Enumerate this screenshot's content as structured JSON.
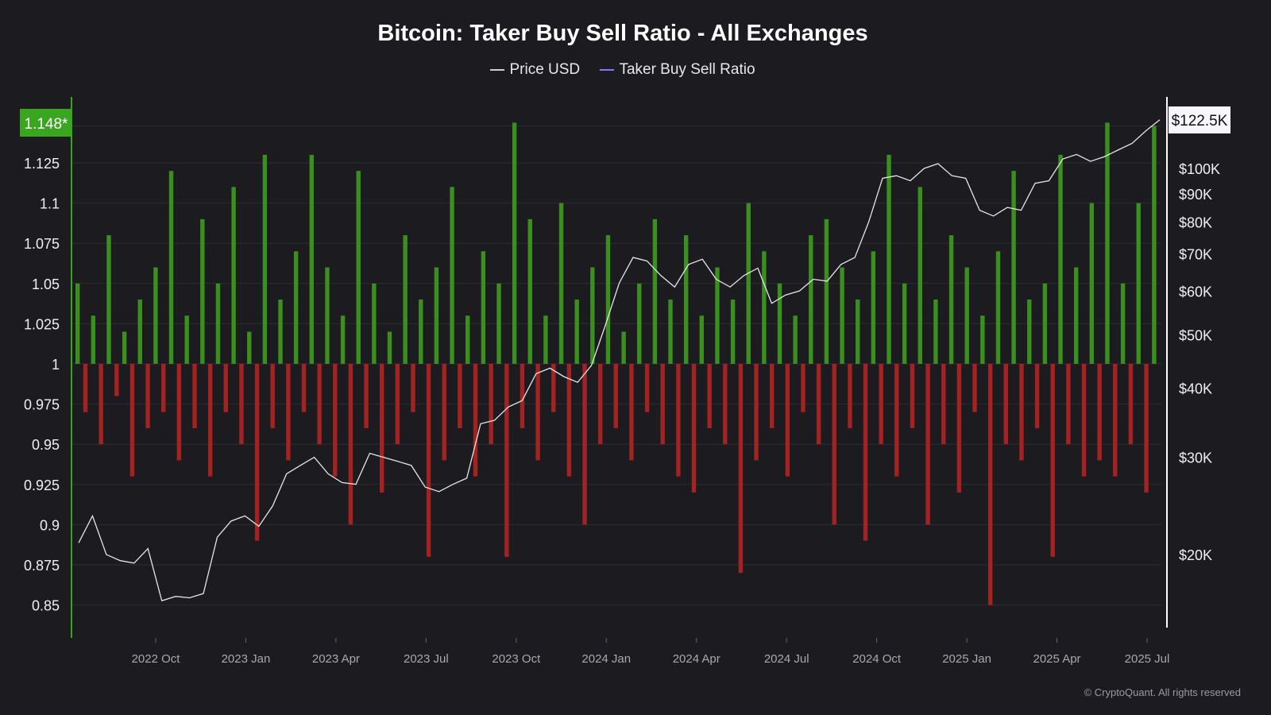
{
  "chart_data": {
    "type": "bar+line",
    "title": "Bitcoin: Taker Buy Sell Ratio - All Exchanges",
    "legend": [
      {
        "name": "Price USD",
        "color": "#cfcfcf"
      },
      {
        "name": "Taker Buy Sell Ratio",
        "color": "#7b7bff"
      }
    ],
    "legend_placement": "top-center",
    "left_axis": {
      "ticks": [
        "1.125",
        "1.1",
        "1.075",
        "1.05",
        "1.025",
        "1",
        "0.975",
        "0.95",
        "0.925",
        "0.9",
        "0.875",
        "0.85"
      ],
      "range": [
        0.83,
        1.163
      ],
      "current_label": "1.148*"
    },
    "right_axis": {
      "scale": "log",
      "ticks": [
        [
          "$100K",
          100000
        ],
        [
          "$90K",
          90000
        ],
        [
          "$80K",
          80000
        ],
        [
          "$70K",
          70000
        ],
        [
          "$60K",
          60000
        ],
        [
          "$50K",
          50000
        ],
        [
          "$40K",
          40000
        ],
        [
          "$30K",
          30000
        ],
        [
          "$20K",
          20000
        ]
      ],
      "current_label": "$122.5K"
    },
    "x_ticks": [
      "2022 Oct",
      "2023 Jan",
      "2023 Apr",
      "2023 Jul",
      "2023 Oct",
      "2024 Jan",
      "2024 Apr",
      "2024 Jul",
      "2024 Oct",
      "2025 Jan",
      "2025 Apr",
      "2025 Jul"
    ],
    "colors": {
      "up": "#3a8f1f",
      "down": "#a32222",
      "price": "#e6e6e6",
      "badge": "#3aa61f"
    },
    "price_series": [
      21000,
      23500,
      20000,
      19500,
      19300,
      20500,
      16500,
      16800,
      16700,
      17000,
      21500,
      23000,
      23500,
      22500,
      24500,
      28000,
      29000,
      30000,
      28000,
      27000,
      26800,
      30500,
      30000,
      29500,
      29000,
      26500,
      26000,
      26800,
      27500,
      34500,
      35000,
      37000,
      38000,
      42500,
      43500,
      42000,
      41000,
      44000,
      52000,
      62000,
      69000,
      68000,
      64000,
      61000,
      67000,
      68500,
      63000,
      61000,
      64000,
      66000,
      57000,
      59000,
      60000,
      63000,
      62500,
      67000,
      69000,
      80000,
      96000,
      97000,
      95000,
      100000,
      102000,
      97000,
      96000,
      84000,
      82000,
      85000,
      84000,
      94000,
      95000,
      104000,
      106000,
      103000,
      105000,
      108000,
      111000,
      117000,
      122500
    ],
    "ratio_series": [
      1.05,
      0.97,
      1.03,
      0.95,
      1.08,
      0.98,
      1.02,
      0.93,
      1.04,
      0.96,
      1.06,
      0.97,
      1.12,
      0.94,
      1.03,
      0.96,
      1.09,
      0.93,
      1.05,
      0.97,
      1.11,
      0.95,
      1.02,
      0.89,
      1.13,
      0.96,
      1.04,
      0.94,
      1.07,
      0.97,
      1.13,
      0.95,
      1.06,
      0.93,
      1.03,
      0.9,
      1.12,
      0.96,
      1.05,
      0.92,
      1.02,
      0.95,
      1.08,
      0.97,
      1.04,
      0.88,
      1.06,
      0.94,
      1.11,
      0.96,
      1.03,
      0.93,
      1.07,
      0.95,
      1.05,
      0.88,
      1.15,
      0.96,
      1.09,
      0.94,
      1.03,
      0.97,
      1.1,
      0.93,
      1.04,
      0.9,
      1.06,
      0.95,
      1.08,
      0.96,
      1.02,
      0.94,
      1.05,
      0.97,
      1.09,
      0.95,
      1.04,
      0.93,
      1.08,
      0.92,
      1.03,
      0.96,
      1.06,
      0.95,
      1.04,
      0.87,
      1.1,
      0.94,
      1.07,
      0.96,
      1.05,
      0.93,
      1.03,
      0.97,
      1.08,
      0.95,
      1.09,
      0.9,
      1.06,
      0.96,
      1.04,
      0.89,
      1.07,
      0.95,
      1.13,
      0.93,
      1.05,
      0.96,
      1.11,
      0.9,
      1.04,
      0.95,
      1.08,
      0.92,
      1.06,
      0.97,
      1.03,
      0.85,
      1.07,
      0.95,
      1.12,
      0.94,
      1.04,
      0.96,
      1.05,
      0.88,
      1.13,
      0.95,
      1.06,
      0.93,
      1.1,
      0.94,
      1.15,
      0.93,
      1.05,
      0.95,
      1.1,
      0.92,
      1.148
    ]
  },
  "copyright": "© CryptoQuant. All rights reserved"
}
